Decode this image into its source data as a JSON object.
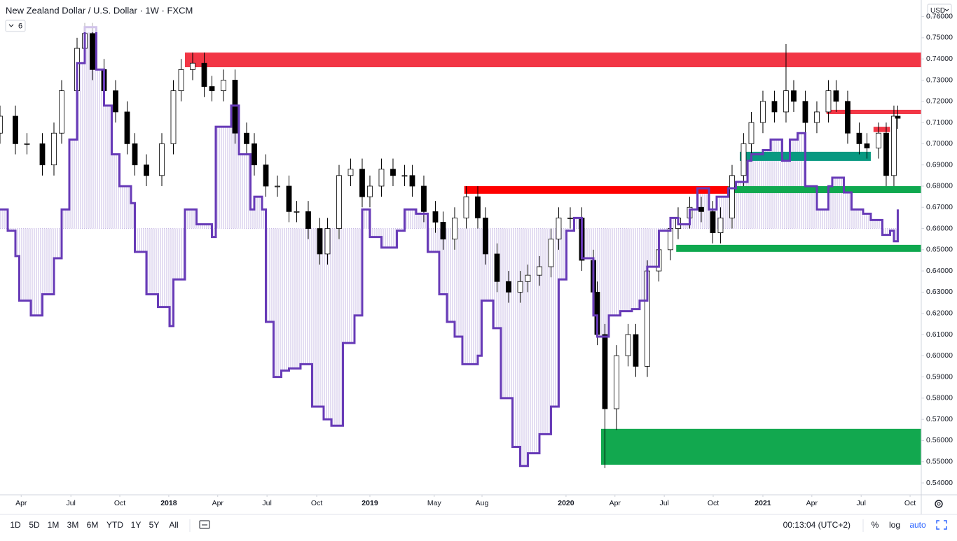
{
  "chart_data": {
    "type": "candlestick",
    "title": "New Zealand Dollar / U.S. Dollar · 1W · FXCM",
    "indicator_count": "6",
    "currency": "USD",
    "up_color": "#ffffff",
    "down_color": "#000000",
    "outline_color": "#000000",
    "xlim": [
      0,
      239.1
    ],
    "xticks": [
      {
        "value": 5.5,
        "label": "Apr"
      },
      {
        "value": 18.4,
        "label": "Jul"
      },
      {
        "value": 31.1,
        "label": "Oct"
      },
      {
        "value": 43.8,
        "label": "2018"
      },
      {
        "value": 56.5,
        "label": "Apr"
      },
      {
        "value": 69.3,
        "label": "Jul"
      },
      {
        "value": 82.2,
        "label": "Oct"
      },
      {
        "value": 96,
        "label": "2019"
      },
      {
        "value": 112.7,
        "label": "May"
      },
      {
        "value": 125.1,
        "label": "Aug"
      },
      {
        "value": 146.9,
        "label": "2020"
      },
      {
        "value": 159.6,
        "label": "Apr"
      },
      {
        "value": 172.4,
        "label": "Jul"
      },
      {
        "value": 185.1,
        "label": "Oct"
      },
      {
        "value": 198,
        "label": "2021"
      },
      {
        "value": 210.7,
        "label": "Apr"
      },
      {
        "value": 223.5,
        "label": "Jul"
      },
      {
        "value": 236.2,
        "label": "Oct"
      }
    ],
    "ylim": [
      0.5344,
      0.7678
    ],
    "yticks": [
      {
        "value": 0.54,
        "label": "0.54000"
      },
      {
        "value": 0.55,
        "label": "0.55000"
      },
      {
        "value": 0.56,
        "label": "0.56000"
      },
      {
        "value": 0.57,
        "label": "0.57000"
      },
      {
        "value": 0.58,
        "label": "0.58000"
      },
      {
        "value": 0.59,
        "label": "0.59000"
      },
      {
        "value": 0.6,
        "label": "0.60000"
      },
      {
        "value": 0.61,
        "label": "0.61000"
      },
      {
        "value": 0.62,
        "label": "0.62000"
      },
      {
        "value": 0.63,
        "label": "0.63000"
      },
      {
        "value": 0.64,
        "label": "0.64000"
      },
      {
        "value": 0.65,
        "label": "0.65000"
      },
      {
        "value": 0.66,
        "label": "0.66000"
      },
      {
        "value": 0.67,
        "label": "0.67000"
      },
      {
        "value": 0.68,
        "label": "0.68000"
      },
      {
        "value": 0.69,
        "label": "0.69000"
      },
      {
        "value": 0.7,
        "label": "0.70000"
      },
      {
        "value": 0.71,
        "label": "0.71000"
      },
      {
        "value": 0.72,
        "label": "0.72000"
      },
      {
        "value": 0.73,
        "label": "0.73000"
      },
      {
        "value": 0.74,
        "label": "0.74000"
      },
      {
        "value": 0.75,
        "label": "0.75000"
      },
      {
        "value": 0.76,
        "label": "0.76000"
      }
    ],
    "x": [
      0,
      4,
      7,
      11,
      14,
      16,
      20,
      22,
      24,
      27,
      30,
      33,
      35,
      38,
      42,
      45,
      47,
      50,
      53,
      55,
      58,
      61,
      64,
      66,
      69,
      72,
      75,
      77,
      80,
      83,
      85,
      88,
      91,
      94,
      96,
      99,
      102,
      105,
      107,
      110,
      113,
      115,
      118,
      121,
      124,
      126,
      129,
      132,
      135,
      137,
      140,
      143,
      145,
      148,
      151,
      154,
      155,
      157,
      160,
      163,
      165,
      168,
      171,
      174,
      176,
      179,
      182,
      185,
      187,
      190,
      193,
      195,
      198,
      201,
      204,
      206,
      209,
      212,
      215,
      217,
      220,
      223,
      225,
      228,
      230,
      232,
      233
    ],
    "open": [
      0.705,
      0.713,
      0.7,
      0.7,
      0.69,
      0.705,
      0.725,
      0.745,
      0.752,
      0.735,
      0.725,
      0.715,
      0.7,
      0.69,
      0.685,
      0.7,
      0.725,
      0.735,
      0.738,
      0.727,
      0.725,
      0.73,
      0.705,
      0.7,
      0.69,
      0.68,
      0.68,
      0.668,
      0.668,
      0.66,
      0.648,
      0.66,
      0.685,
      0.688,
      0.675,
      0.68,
      0.688,
      0.685,
      0.685,
      0.68,
      0.668,
      0.663,
      0.655,
      0.665,
      0.675,
      0.665,
      0.648,
      0.635,
      0.63,
      0.635,
      0.638,
      0.642,
      0.655,
      0.665,
      0.665,
      0.645,
      0.63,
      0.61,
      0.575,
      0.6,
      0.61,
      0.595,
      0.64,
      0.65,
      0.66,
      0.665,
      0.67,
      0.668,
      0.658,
      0.665,
      0.685,
      0.7,
      0.71,
      0.72,
      0.715,
      0.725,
      0.72,
      0.71,
      0.715,
      0.725,
      0.72,
      0.705,
      0.7,
      0.698,
      0.705,
      0.685,
      0.713
    ],
    "high": [
      0.718,
      0.718,
      0.705,
      0.705,
      0.71,
      0.73,
      0.75,
      0.757,
      0.757,
      0.74,
      0.73,
      0.72,
      0.705,
      0.695,
      0.705,
      0.73,
      0.74,
      0.743,
      0.743,
      0.732,
      0.735,
      0.735,
      0.71,
      0.705,
      0.695,
      0.685,
      0.685,
      0.673,
      0.673,
      0.665,
      0.665,
      0.69,
      0.693,
      0.693,
      0.685,
      0.693,
      0.693,
      0.69,
      0.69,
      0.685,
      0.673,
      0.668,
      0.67,
      0.68,
      0.68,
      0.67,
      0.653,
      0.64,
      0.64,
      0.643,
      0.647,
      0.66,
      0.67,
      0.67,
      0.67,
      0.65,
      0.635,
      0.615,
      0.605,
      0.615,
      0.615,
      0.645,
      0.655,
      0.665,
      0.67,
      0.675,
      0.675,
      0.673,
      0.67,
      0.69,
      0.705,
      0.715,
      0.725,
      0.725,
      0.747,
      0.73,
      0.725,
      0.72,
      0.73,
      0.73,
      0.725,
      0.71,
      0.705,
      0.71,
      0.71,
      0.718,
      0.718
    ],
    "low": [
      0.7,
      0.695,
      0.695,
      0.685,
      0.685,
      0.7,
      0.72,
      0.74,
      0.73,
      0.72,
      0.71,
      0.695,
      0.685,
      0.68,
      0.68,
      0.695,
      0.72,
      0.73,
      0.722,
      0.72,
      0.72,
      0.7,
      0.695,
      0.685,
      0.675,
      0.675,
      0.663,
      0.663,
      0.655,
      0.643,
      0.643,
      0.655,
      0.68,
      0.67,
      0.67,
      0.675,
      0.68,
      0.68,
      0.675,
      0.663,
      0.658,
      0.65,
      0.65,
      0.66,
      0.66,
      0.643,
      0.63,
      0.625,
      0.625,
      0.63,
      0.633,
      0.637,
      0.65,
      0.66,
      0.64,
      0.625,
      0.605,
      0.547,
      0.565,
      0.595,
      0.59,
      0.59,
      0.635,
      0.645,
      0.655,
      0.66,
      0.663,
      0.653,
      0.653,
      0.66,
      0.68,
      0.695,
      0.705,
      0.71,
      0.71,
      0.715,
      0.705,
      0.705,
      0.71,
      0.715,
      0.7,
      0.695,
      0.693,
      0.693,
      0.68,
      0.68,
      0.707
    ],
    "close": [
      0.713,
      0.7,
      0.7,
      0.69,
      0.705,
      0.725,
      0.745,
      0.752,
      0.735,
      0.725,
      0.715,
      0.7,
      0.69,
      0.685,
      0.7,
      0.725,
      0.735,
      0.738,
      0.727,
      0.725,
      0.73,
      0.705,
      0.7,
      0.69,
      0.68,
      0.68,
      0.668,
      0.668,
      0.66,
      0.648,
      0.66,
      0.685,
      0.688,
      0.675,
      0.68,
      0.688,
      0.685,
      0.685,
      0.68,
      0.668,
      0.663,
      0.655,
      0.665,
      0.675,
      0.665,
      0.648,
      0.635,
      0.63,
      0.635,
      0.638,
      0.642,
      0.655,
      0.665,
      0.665,
      0.645,
      0.63,
      0.61,
      0.575,
      0.6,
      0.61,
      0.595,
      0.64,
      0.65,
      0.66,
      0.665,
      0.67,
      0.668,
      0.658,
      0.665,
      0.685,
      0.7,
      0.71,
      0.72,
      0.715,
      0.725,
      0.72,
      0.71,
      0.715,
      0.725,
      0.72,
      0.705,
      0.7,
      0.698,
      0.705,
      0.685,
      0.713,
      0.712
    ],
    "indicator": {
      "color": "#673ab7",
      "fill_color": "#c9bce6",
      "baseline": 0.66,
      "x": [
        0,
        2,
        4,
        5,
        8,
        11,
        14,
        16,
        18,
        20,
        22,
        25,
        27,
        29,
        31,
        34,
        35,
        38,
        41,
        44,
        45,
        48,
        51,
        55,
        56,
        58,
        60,
        62,
        65,
        66,
        68,
        69,
        71,
        73,
        75,
        78,
        81,
        84,
        86,
        89,
        92,
        94,
        96,
        99,
        103,
        105,
        108,
        111,
        114,
        116,
        118,
        120,
        124,
        125,
        128,
        130,
        133,
        135,
        137,
        140,
        143,
        145,
        147,
        149,
        151,
        154,
        155,
        158,
        161,
        164,
        166,
        168,
        171,
        174,
        176,
        179,
        181,
        184,
        186,
        189,
        191,
        194,
        195,
        198,
        200,
        203,
        205,
        207,
        209,
        212,
        215,
        216,
        219,
        221,
        224,
        226,
        229,
        231,
        232,
        233
      ],
      "values": [
        0.669,
        0.659,
        0.647,
        0.626,
        0.619,
        0.629,
        0.646,
        0.669,
        0.702,
        0.738,
        0.755,
        0.735,
        0.718,
        0.695,
        0.68,
        0.672,
        0.649,
        0.629,
        0.623,
        0.614,
        0.636,
        0.669,
        0.662,
        0.656,
        0.708,
        0.708,
        0.718,
        0.695,
        0.669,
        0.675,
        0.669,
        0.616,
        0.59,
        0.593,
        0.594,
        0.596,
        0.576,
        0.57,
        0.567,
        0.606,
        0.619,
        0.669,
        0.656,
        0.651,
        0.659,
        0.669,
        0.667,
        0.649,
        0.629,
        0.616,
        0.609,
        0.596,
        0.6,
        0.626,
        0.613,
        0.58,
        0.557,
        0.548,
        0.554,
        0.563,
        0.576,
        0.636,
        0.659,
        0.665,
        0.646,
        0.619,
        0.609,
        0.619,
        0.621,
        0.622,
        0.626,
        0.642,
        0.659,
        0.665,
        0.662,
        0.669,
        0.679,
        0.669,
        0.675,
        0.679,
        0.682,
        0.692,
        0.695,
        0.697,
        0.702,
        0.692,
        0.702,
        0.705,
        0.68,
        0.669,
        0.68,
        0.684,
        0.677,
        0.669,
        0.667,
        0.664,
        0.657,
        0.659,
        0.654,
        0.669
      ]
    },
    "zones": [
      {
        "color": "#f23645",
        "x": [
          48,
          239.1
        ],
        "y": [
          0.7361,
          0.743
        ]
      },
      {
        "color": "#ff0000",
        "x": [
          120.5,
          189
        ],
        "y": [
          0.6764,
          0.68
        ]
      },
      {
        "color": "#f23645",
        "x": [
          214.5,
          239.1
        ],
        "y": [
          0.714,
          0.716
        ]
      },
      {
        "color": "#f23645",
        "x": [
          226.7,
          231
        ],
        "y": [
          0.7055,
          0.708
        ]
      },
      {
        "color": "#089981",
        "x": [
          192,
          226
        ],
        "y": [
          0.6919,
          0.6962
        ]
      },
      {
        "color": "#0fa84f",
        "x": [
          189,
          239.1
        ],
        "y": [
          0.6767,
          0.68
        ]
      },
      {
        "color": "#0fa84f",
        "x": [
          175.5,
          239.1
        ],
        "y": [
          0.649,
          0.6523
        ]
      },
      {
        "color": "#12a84f",
        "x": [
          156,
          239.1
        ],
        "y": [
          0.5486,
          0.5655
        ]
      }
    ],
    "toolbar": {
      "ranges": [
        "1D",
        "5D",
        "1M",
        "3M",
        "6M",
        "YTD",
        "1Y",
        "5Y",
        "All"
      ],
      "clock": "00:13:04 (UTC+2)",
      "options": [
        "%",
        "log",
        "auto"
      ]
    }
  }
}
